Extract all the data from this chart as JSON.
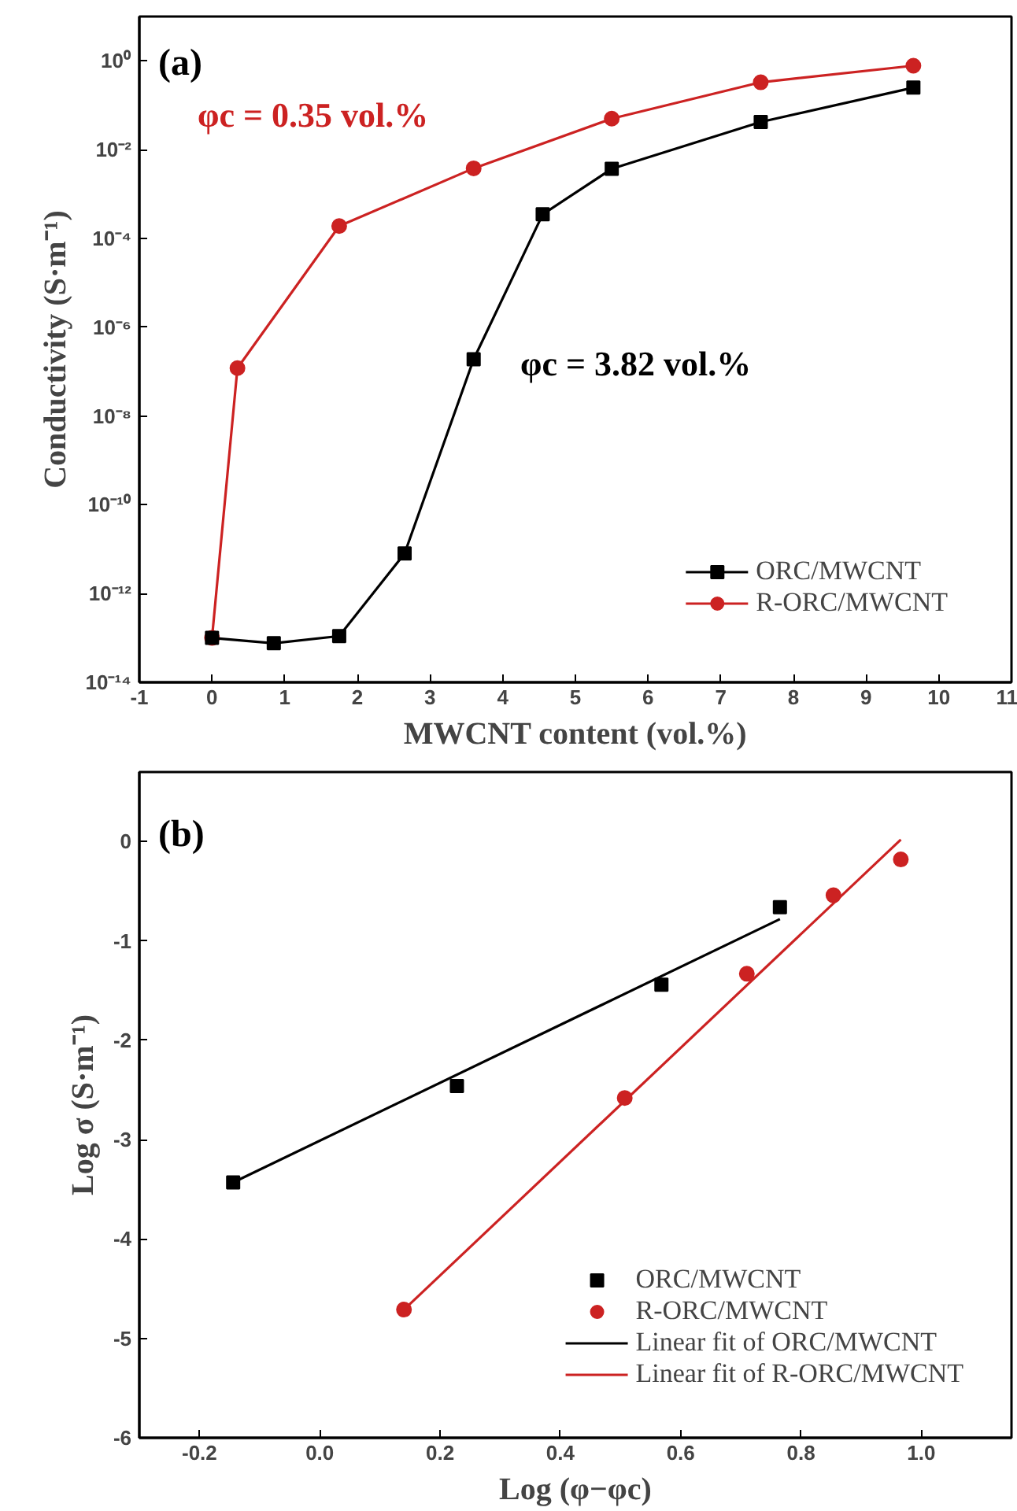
{
  "chart_data": [
    {
      "type": "line",
      "xlabel": "MWCNT content (vol.%)",
      "ylabel": "Conductivity (S·m⁻¹)",
      "log": "y",
      "xlim": [
        -1,
        11
      ],
      "ylim": [
        1e-14,
        10
      ],
      "xticks": [
        -1,
        0,
        1,
        2,
        3,
        4,
        5,
        6,
        7,
        8,
        9,
        10,
        11
      ],
      "yticks": [
        {
          "value": 1e-14,
          "label": "10⁻¹⁴"
        },
        {
          "value": 1e-12,
          "label": "10⁻¹²"
        },
        {
          "value": 1e-10,
          "label": "10⁻¹⁰"
        },
        {
          "value": 1e-08,
          "label": "10⁻⁸"
        },
        {
          "value": 1e-06,
          "label": "10⁻⁶"
        },
        {
          "value": 0.0001,
          "label": "10⁻⁴"
        },
        {
          "value": 0.01,
          "label": "10⁻²"
        },
        {
          "value": 1,
          "label": "10⁰"
        }
      ],
      "grid": false,
      "legend": "bottom right",
      "annotations": [
        "(a)",
        "φc = 0.35 vol.%",
        "φc = 3.82 vol.%"
      ],
      "series": [
        {
          "name": "ORC/MWCNT",
          "color": "#000000",
          "marker": "square",
          "x": [
            0,
            0.85,
            1.75,
            2.65,
            3.6,
            4.55,
            5.5,
            7.55,
            9.65
          ],
          "values": [
            1e-13,
            7.6e-14,
            1.1e-13,
            8e-12,
            1.9e-07,
            0.00035,
            0.0037,
            0.042,
            0.25
          ]
        },
        {
          "name": "R-ORC/MWCNT",
          "color": "#cc2222",
          "marker": "circle",
          "x": [
            0,
            0.35,
            1.75,
            3.6,
            5.5,
            7.55,
            9.65
          ],
          "values": [
            1e-13,
            1.2e-07,
            0.00019,
            0.0038,
            0.05,
            0.33,
            0.78
          ]
        }
      ]
    },
    {
      "type": "scatter",
      "xlabel": "Log (φ−φc)",
      "ylabel": "Log σ (S·m⁻¹)",
      "xlim": [
        -0.3,
        1.15
      ],
      "ylim": [
        -6,
        0.7
      ],
      "xticks": [
        {
          "value": -0.2,
          "label": "-0.2"
        },
        {
          "value": 0,
          "label": "0.0"
        },
        {
          "value": 0.2,
          "label": "0.2"
        },
        {
          "value": 0.4,
          "label": "0.4"
        },
        {
          "value": 0.6,
          "label": "0.6"
        },
        {
          "value": 0.8,
          "label": "0.8"
        },
        {
          "value": 1,
          "label": "1.0"
        }
      ],
      "yticks": [
        -6,
        -5,
        -4,
        -3,
        -2,
        -1,
        0
      ],
      "grid": false,
      "legend": "bottom right",
      "annotations": [
        "(b)"
      ],
      "series": [
        {
          "name": "ORC/MWCNT",
          "color": "#000000",
          "marker": "square",
          "x": [
            -0.144,
            0.228,
            0.568,
            0.765
          ],
          "values": [
            -3.43,
            -2.46,
            -1.44,
            -0.66
          ]
        },
        {
          "name": "R-ORC/MWCNT",
          "color": "#cc2222",
          "marker": "circle",
          "x": [
            0.14,
            0.507,
            0.71,
            0.854,
            0.966
          ],
          "values": [
            -4.71,
            -2.58,
            -1.33,
            -0.54,
            -0.18
          ]
        },
        {
          "name": "Linear fit of ORC/MWCNT",
          "type": "line",
          "color": "#000000",
          "marker": "none",
          "x": [
            -0.144,
            0.765
          ],
          "values": [
            -3.43,
            -0.78
          ]
        },
        {
          "name": "Linear fit of R-ORC/MWCNT",
          "type": "line",
          "color": "#cc2222",
          "marker": "none",
          "x": [
            0.14,
            0.966
          ],
          "values": [
            -4.71,
            0.02
          ]
        }
      ]
    }
  ]
}
